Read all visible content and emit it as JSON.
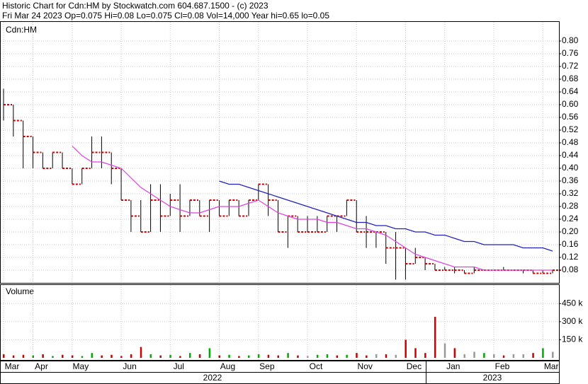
{
  "header": {
    "line1": "Historic Chart for Cdn:HM by Stockwatch.com 604.687.1500 - (c) 2023",
    "line2": "Fri Mar 24 2023  Op=0.075  Hi=0.08  Lo=0.075  Cl=0.08  Vol=14,000  Year hi=0.65  lo=0.05"
  },
  "years": [
    "2022",
    "2023"
  ],
  "chart_data": [
    {
      "type": "ohlc",
      "label": "Cdn:HM",
      "categories": [
        "Mar",
        null,
        null,
        "Apr",
        null,
        null,
        null,
        "May",
        null,
        null,
        null,
        null,
        "Jun",
        null,
        null,
        null,
        null,
        "Jul",
        null,
        null,
        null,
        null,
        "Aug",
        null,
        null,
        null,
        "Sep",
        null,
        null,
        null,
        null,
        "Oct",
        null,
        null,
        null,
        null,
        "Nov",
        null,
        null,
        null,
        null,
        "Dec",
        null,
        null,
        null,
        "Jan",
        null,
        null,
        null,
        null,
        "Feb",
        null,
        null,
        null,
        null,
        "Mar",
        null
      ],
      "high": [
        0.65,
        0.6,
        0.55,
        0.5,
        0.45,
        0.45,
        0.45,
        0.4,
        0.4,
        0.5,
        0.5,
        0.45,
        0.4,
        0.3,
        0.3,
        0.35,
        0.35,
        0.32,
        0.35,
        0.3,
        0.3,
        0.3,
        0.3,
        0.3,
        0.3,
        0.3,
        0.35,
        0.35,
        0.3,
        0.25,
        0.25,
        0.25,
        0.25,
        0.25,
        0.25,
        0.3,
        0.3,
        0.25,
        0.2,
        0.2,
        0.2,
        0.15,
        0.15,
        0.12,
        0.1,
        0.09,
        0.09,
        0.08,
        0.09,
        0.08,
        0.08,
        0.09,
        0.08,
        0.08,
        0.08,
        0.08,
        0.08
      ],
      "low": [
        0.55,
        0.5,
        0.4,
        0.4,
        0.4,
        0.4,
        0.4,
        0.35,
        0.35,
        0.4,
        0.4,
        0.35,
        0.3,
        0.2,
        0.2,
        0.2,
        0.2,
        0.25,
        0.2,
        0.25,
        0.25,
        0.2,
        0.25,
        0.25,
        0.25,
        0.25,
        0.3,
        0.25,
        0.2,
        0.15,
        0.2,
        0.2,
        0.2,
        0.2,
        0.2,
        0.25,
        0.2,
        0.15,
        0.15,
        0.1,
        0.05,
        0.05,
        0.1,
        0.08,
        0.08,
        0.08,
        0.07,
        0.07,
        0.07,
        0.08,
        0.08,
        0.08,
        0.08,
        0.07,
        0.07,
        0.07,
        0.07
      ],
      "close": [
        0.6,
        0.55,
        0.5,
        0.45,
        0.4,
        0.45,
        0.4,
        0.35,
        0.4,
        0.45,
        0.45,
        0.4,
        0.3,
        0.25,
        0.2,
        0.3,
        0.25,
        0.3,
        0.25,
        0.3,
        0.25,
        0.3,
        0.25,
        0.3,
        0.25,
        0.3,
        0.35,
        0.3,
        0.2,
        0.25,
        0.2,
        0.2,
        0.2,
        0.25,
        0.25,
        0.3,
        0.2,
        0.2,
        0.2,
        0.15,
        0.15,
        0.1,
        0.12,
        0.1,
        0.08,
        0.08,
        0.08,
        0.07,
        0.08,
        0.08,
        0.08,
        0.08,
        0.08,
        0.08,
        0.07,
        0.07,
        0.08
      ],
      "bar_color": "#000000",
      "close_color": "#cc0000",
      "series": [
        {
          "color": "#e040e0",
          "values": [
            null,
            null,
            null,
            null,
            null,
            null,
            null,
            0.47,
            0.44,
            0.42,
            0.42,
            0.41,
            0.4,
            0.37,
            0.34,
            0.32,
            0.3,
            0.28,
            0.27,
            0.26,
            0.26,
            0.27,
            0.28,
            0.28,
            0.28,
            0.29,
            0.3,
            0.28,
            0.26,
            0.25,
            0.24,
            0.24,
            0.24,
            0.23,
            0.23,
            0.22,
            0.21,
            0.21,
            0.2,
            0.19,
            0.17,
            0.15,
            0.13,
            0.12,
            0.11,
            0.1,
            0.09,
            0.09,
            0.09,
            0.08,
            0.08,
            0.08,
            0.08,
            0.08,
            0.08,
            0.08,
            0.08
          ]
        },
        {
          "color": "#2020c0",
          "values": [
            null,
            null,
            null,
            null,
            null,
            null,
            null,
            null,
            null,
            null,
            null,
            null,
            null,
            null,
            null,
            null,
            null,
            null,
            null,
            null,
            null,
            null,
            0.36,
            0.35,
            0.35,
            0.34,
            0.33,
            0.32,
            0.31,
            0.3,
            0.29,
            0.28,
            0.27,
            0.26,
            0.25,
            0.24,
            0.23,
            0.23,
            0.22,
            0.22,
            0.21,
            0.21,
            0.2,
            0.2,
            0.19,
            0.19,
            0.18,
            0.17,
            0.17,
            0.16,
            0.16,
            0.16,
            0.16,
            0.15,
            0.15,
            0.15,
            0.14
          ]
        }
      ],
      "ylim": [
        0.04,
        0.86
      ],
      "yticks": [
        0.08,
        0.12,
        0.16,
        {
          "value": 0.2,
          "label": "0.20"
        },
        0.24,
        0.28,
        0.32,
        0.36,
        {
          "value": 0.4,
          "label": "0.40"
        },
        0.44,
        0.48,
        0.52,
        0.56,
        {
          "value": 0.6,
          "label": "0.60"
        },
        0.64,
        0.68,
        0.72,
        0.76,
        {
          "value": 0.8,
          "label": "0.80"
        }
      ],
      "grid": true
    },
    {
      "type": "bar",
      "label": "Volume",
      "values": [
        30000,
        20000,
        25000,
        20000,
        30000,
        15000,
        25000,
        20000,
        15000,
        40000,
        20000,
        25000,
        15000,
        30000,
        90000,
        30000,
        20000,
        25000,
        15000,
        40000,
        30000,
        80000,
        20000,
        25000,
        15000,
        20000,
        30000,
        25000,
        20000,
        40000,
        20000,
        15000,
        25000,
        30000,
        20000,
        25000,
        40000,
        20000,
        30000,
        30000,
        25000,
        150000,
        80000,
        40000,
        340000,
        120000,
        80000,
        30000,
        50000,
        40000,
        30000,
        20000,
        30000,
        30000,
        40000,
        80000,
        50000
      ],
      "colors": [
        "#cc0000",
        "#cc0000",
        "#cc0000",
        "#00aa00",
        "#cc0000",
        "#00aa00",
        "#cc0000",
        "#cc0000",
        "#00aa00",
        "#00aa00",
        "#cc0000",
        "#cc0000",
        "#cc0000",
        "#cc0000",
        "#cc0000",
        "#00aa00",
        "#cc0000",
        "#00aa00",
        "#cc0000",
        "#00aa00",
        "#cc0000",
        "#00aa00",
        "#cc0000",
        "#00aa00",
        "#cc0000",
        "#00aa00",
        "#00aa00",
        "#cc0000",
        "#cc0000",
        "#00aa00",
        "#cc0000",
        "#999999",
        "#00aa00",
        "#00aa00",
        "#cc0000",
        "#00aa00",
        "#cc0000",
        "#cc0000",
        "#999999",
        "#cc0000",
        "#999999",
        "#cc0000",
        "#cc0000",
        "#cc0000",
        "#cc0000",
        "#999999",
        "#cc0000",
        "#999999",
        "#999999",
        "#00aa00",
        "#999999",
        "#cc0000",
        "#999999",
        "#999999",
        "#cc0000",
        "#00aa00",
        "#999999"
      ],
      "ylim": [
        0,
        610000
      ],
      "yticks": [
        {
          "value": 150000,
          "label": "150 k"
        },
        {
          "value": 300000,
          "label": "300 k"
        },
        {
          "value": 450000,
          "label": "450 k"
        }
      ],
      "grid": true
    }
  ]
}
